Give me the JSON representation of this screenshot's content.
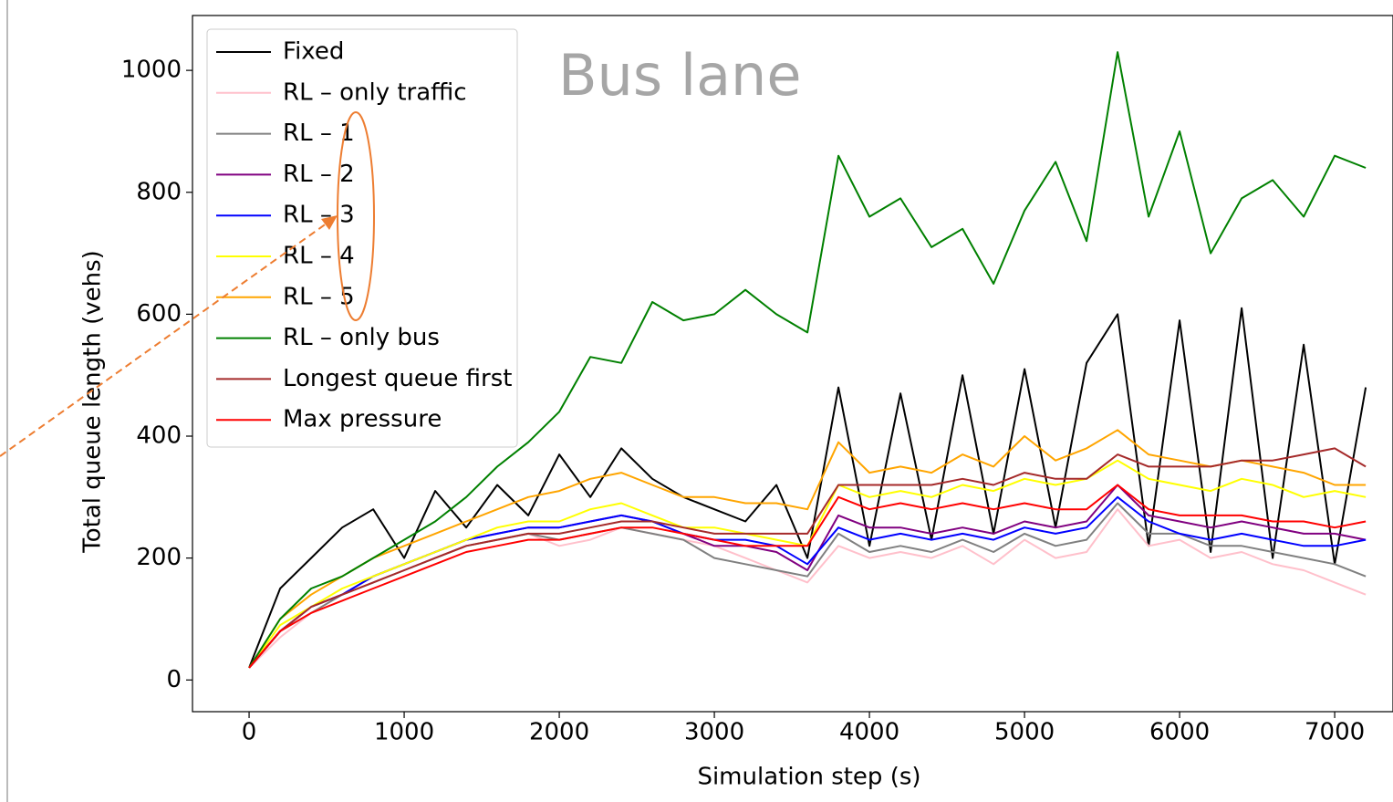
{
  "chart_data": {
    "type": "line",
    "annotation": "Bus lane",
    "xlabel": "Simulation step (s)",
    "ylabel": "Total queue length (vehs)",
    "x": [
      0,
      200,
      400,
      600,
      800,
      1000,
      1200,
      1400,
      1600,
      1800,
      2000,
      2200,
      2400,
      2600,
      2800,
      3000,
      3200,
      3400,
      3600,
      3800,
      4000,
      4200,
      4400,
      4600,
      4800,
      5000,
      5200,
      5400,
      5600,
      5800,
      6000,
      6200,
      6400,
      6600,
      6800,
      7000,
      7200
    ],
    "series": [
      {
        "name": "Fixed",
        "color": "#000000",
        "values": [
          20,
          150,
          200,
          250,
          280,
          200,
          310,
          250,
          320,
          270,
          370,
          300,
          380,
          330,
          300,
          280,
          260,
          320,
          200,
          480,
          220,
          470,
          230,
          500,
          240,
          510,
          250,
          520,
          600,
          220,
          590,
          210,
          610,
          200,
          550,
          190,
          480
        ]
      },
      {
        "name": "RL – only traffic",
        "color": "#ffc0cb",
        "values": [
          20,
          70,
          110,
          140,
          160,
          180,
          200,
          220,
          230,
          240,
          220,
          230,
          250,
          240,
          230,
          220,
          200,
          180,
          160,
          220,
          200,
          210,
          200,
          220,
          190,
          230,
          200,
          210,
          280,
          220,
          230,
          200,
          210,
          190,
          180,
          160,
          140
        ]
      },
      {
        "name": "RL – 1",
        "color": "#808080",
        "values": [
          20,
          80,
          110,
          140,
          160,
          180,
          200,
          220,
          230,
          240,
          230,
          240,
          250,
          240,
          230,
          200,
          190,
          180,
          170,
          240,
          210,
          220,
          210,
          230,
          210,
          240,
          220,
          230,
          290,
          240,
          240,
          220,
          220,
          210,
          200,
          190,
          170
        ]
      },
      {
        "name": "RL – 2",
        "color": "#800080",
        "values": [
          20,
          80,
          120,
          140,
          170,
          190,
          210,
          230,
          240,
          250,
          250,
          260,
          270,
          260,
          240,
          220,
          220,
          210,
          180,
          270,
          250,
          250,
          240,
          250,
          240,
          260,
          250,
          260,
          320,
          270,
          260,
          250,
          260,
          250,
          240,
          240,
          230
        ]
      },
      {
        "name": "RL – 3",
        "color": "#0000ff",
        "values": [
          20,
          80,
          120,
          140,
          170,
          190,
          210,
          230,
          240,
          250,
          250,
          260,
          270,
          260,
          240,
          230,
          230,
          220,
          190,
          250,
          230,
          240,
          230,
          240,
          230,
          250,
          240,
          250,
          300,
          260,
          240,
          230,
          240,
          230,
          220,
          220,
          230
        ]
      },
      {
        "name": "RL – 4",
        "color": "#ffff00",
        "values": [
          20,
          90,
          120,
          150,
          170,
          190,
          210,
          230,
          250,
          260,
          260,
          280,
          290,
          270,
          250,
          250,
          240,
          230,
          220,
          320,
          300,
          310,
          300,
          320,
          310,
          330,
          320,
          330,
          360,
          330,
          320,
          310,
          330,
          320,
          300,
          310,
          300
        ]
      },
      {
        "name": "RL – 5",
        "color": "#ffa500",
        "values": [
          20,
          100,
          140,
          170,
          200,
          220,
          240,
          260,
          280,
          300,
          310,
          330,
          340,
          320,
          300,
          300,
          290,
          290,
          280,
          390,
          340,
          350,
          340,
          370,
          350,
          400,
          360,
          380,
          410,
          370,
          360,
          350,
          360,
          350,
          340,
          320,
          320
        ]
      },
      {
        "name": "RL – only bus",
        "color": "#008000",
        "values": [
          20,
          100,
          150,
          170,
          200,
          230,
          260,
          300,
          350,
          390,
          440,
          530,
          520,
          620,
          590,
          600,
          640,
          600,
          570,
          860,
          760,
          790,
          710,
          740,
          650,
          770,
          850,
          720,
          1030,
          760,
          900,
          700,
          790,
          820,
          760,
          860,
          840
        ]
      },
      {
        "name": "Longest queue first",
        "color": "#a52a2a",
        "values": [
          20,
          80,
          120,
          140,
          160,
          180,
          200,
          220,
          230,
          240,
          240,
          250,
          260,
          260,
          250,
          240,
          240,
          240,
          240,
          320,
          320,
          320,
          320,
          330,
          320,
          340,
          330,
          330,
          370,
          350,
          350,
          350,
          360,
          360,
          370,
          380,
          350
        ]
      },
      {
        "name": "Max pressure",
        "color": "#ff0000",
        "values": [
          20,
          80,
          110,
          130,
          150,
          170,
          190,
          210,
          220,
          230,
          230,
          240,
          250,
          250,
          240,
          230,
          220,
          220,
          220,
          300,
          280,
          290,
          280,
          290,
          280,
          290,
          280,
          280,
          320,
          280,
          270,
          270,
          270,
          260,
          260,
          250,
          260
        ]
      }
    ],
    "xlim": [
      -365,
      7376
    ],
    "ylim": [
      -52,
      1090
    ],
    "xticks": [
      0,
      1000,
      2000,
      3000,
      4000,
      5000,
      6000,
      7000
    ],
    "yticks": [
      0,
      200,
      400,
      600,
      800,
      1000
    ],
    "legend": "upper left"
  }
}
